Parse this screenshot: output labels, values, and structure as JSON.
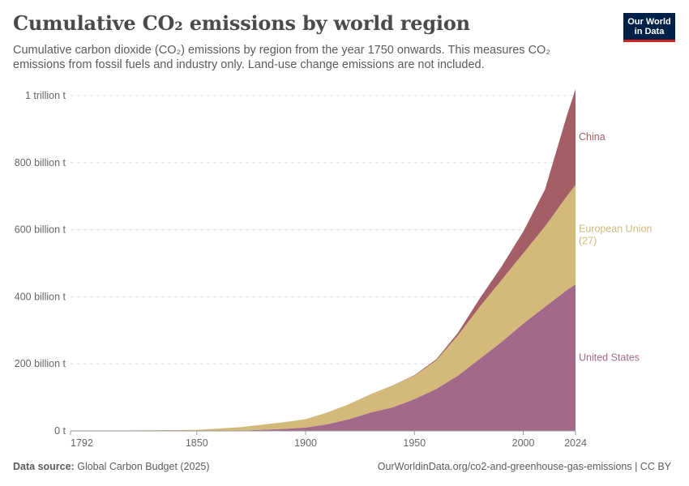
{
  "header": {
    "title": "Cumulative CO₂ emissions by world region",
    "subtitle": "Cumulative carbon dioxide (CO₂) emissions by region from the year 1750 onwards. This measures CO₂ emissions from fossil fuels and industry only. Land-use change emissions are not included."
  },
  "logo": {
    "line1": "Our World",
    "line2": "in Data",
    "bg_color": "#002147",
    "accent_color": "#ce261e"
  },
  "footer": {
    "source_label": "Data source:",
    "source_text": "Global Carbon Budget (2025)",
    "url_license": "OurWorldinData.org/co2-and-greenhouse-gas-emissions | CC BY"
  },
  "chart_data": {
    "type": "area",
    "stacked": true,
    "title": "Cumulative CO₂ emissions by world region",
    "xlabel": "",
    "ylabel": "",
    "xlim": [
      1792,
      2024
    ],
    "ylim": [
      0,
      1000
    ],
    "grid": true,
    "y_ticks": [
      {
        "value": 0,
        "label": "0 t"
      },
      {
        "value": 200,
        "label": "200 billion t"
      },
      {
        "value": 400,
        "label": "400 billion t"
      },
      {
        "value": 600,
        "label": "600 billion t"
      },
      {
        "value": 800,
        "label": "800 billion t"
      },
      {
        "value": 1000,
        "label": "1 trillion t"
      }
    ],
    "x_ticks": [
      1792,
      1850,
      1900,
      1950,
      2000,
      2024
    ],
    "x": [
      1792,
      1850,
      1870,
      1890,
      1900,
      1910,
      1920,
      1930,
      1940,
      1950,
      1960,
      1970,
      1980,
      1990,
      2000,
      2010,
      2020,
      2024
    ],
    "series": [
      {
        "name": "United States",
        "color": "#a2698a",
        "values": [
          0,
          0.1,
          1,
          6,
          10,
          20,
          35,
          55,
          70,
          95,
          125,
          165,
          215,
          265,
          320,
          370,
          420,
          437
        ]
      },
      {
        "name": "European Union (27)",
        "color": "#d3ba7b",
        "values": [
          0.1,
          3,
          10,
          20,
          25,
          35,
          45,
          55,
          65,
          70,
          85,
          120,
          155,
          185,
          210,
          240,
          280,
          297
        ]
      },
      {
        "name": "China",
        "color": "#a35f65",
        "values": [
          0,
          0,
          0,
          0,
          0,
          0,
          0,
          0,
          0.5,
          1.5,
          3,
          8,
          25,
          40,
          65,
          110,
          240,
          285
        ]
      }
    ]
  }
}
